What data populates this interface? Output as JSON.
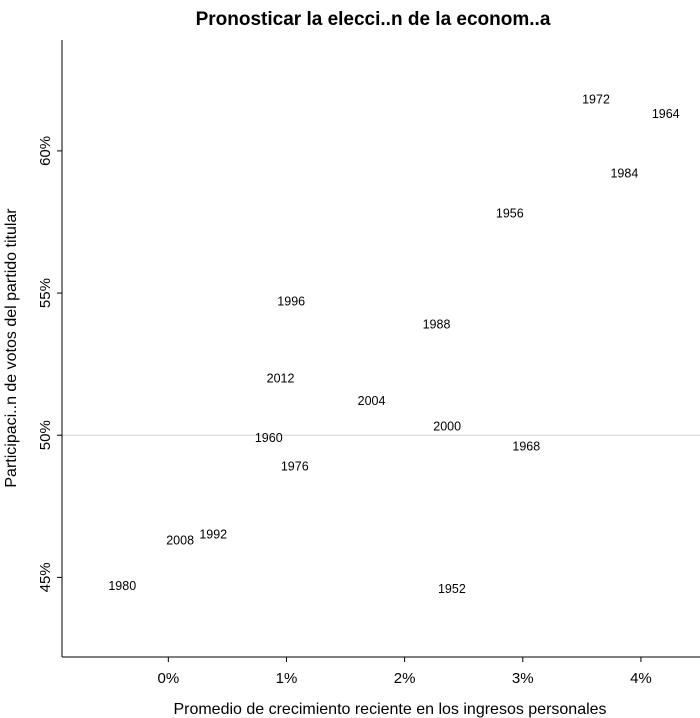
{
  "chart_data": {
    "type": "scatter",
    "title": "Pronosticar la elecci..n de la econom..a",
    "xlabel": "Promedio de crecimiento reciente en los ingresos personales",
    "ylabel": "Participaci..n de votos del partido titular",
    "xlim": [
      -0.9,
      4.5
    ],
    "ylim": [
      42.2,
      63.9
    ],
    "x_ticks": [
      {
        "value": 0,
        "label": "0%"
      },
      {
        "value": 1,
        "label": "1%"
      },
      {
        "value": 2,
        "label": "2%"
      },
      {
        "value": 3,
        "label": "3%"
      },
      {
        "value": 4,
        "label": "4%"
      }
    ],
    "y_ticks": [
      {
        "value": 45,
        "label": "45%"
      },
      {
        "value": 50,
        "label": "50%"
      },
      {
        "value": 55,
        "label": "55%"
      },
      {
        "value": 60,
        "label": "60%"
      }
    ],
    "reference_line_y": 50,
    "points": [
      {
        "label": "1952",
        "x": 2.4,
        "y": 44.6
      },
      {
        "label": "1956",
        "x": 2.89,
        "y": 57.8
      },
      {
        "label": "1960",
        "x": 0.85,
        "y": 49.9
      },
      {
        "label": "1964",
        "x": 4.21,
        "y": 61.3
      },
      {
        "label": "1968",
        "x": 3.03,
        "y": 49.6
      },
      {
        "label": "1972",
        "x": 3.62,
        "y": 61.8
      },
      {
        "label": "1976",
        "x": 1.07,
        "y": 48.9
      },
      {
        "label": "1980",
        "x": -0.39,
        "y": 44.7
      },
      {
        "label": "1984",
        "x": 3.86,
        "y": 59.2
      },
      {
        "label": "1988",
        "x": 2.27,
        "y": 53.9
      },
      {
        "label": "1992",
        "x": 0.38,
        "y": 46.5
      },
      {
        "label": "1996",
        "x": 1.04,
        "y": 54.7
      },
      {
        "label": "2000",
        "x": 2.36,
        "y": 50.3
      },
      {
        "label": "2004",
        "x": 1.72,
        "y": 51.2
      },
      {
        "label": "2008",
        "x": 0.1,
        "y": 46.3
      },
      {
        "label": "2012",
        "x": 0.95,
        "y": 52.0
      }
    ]
  }
}
